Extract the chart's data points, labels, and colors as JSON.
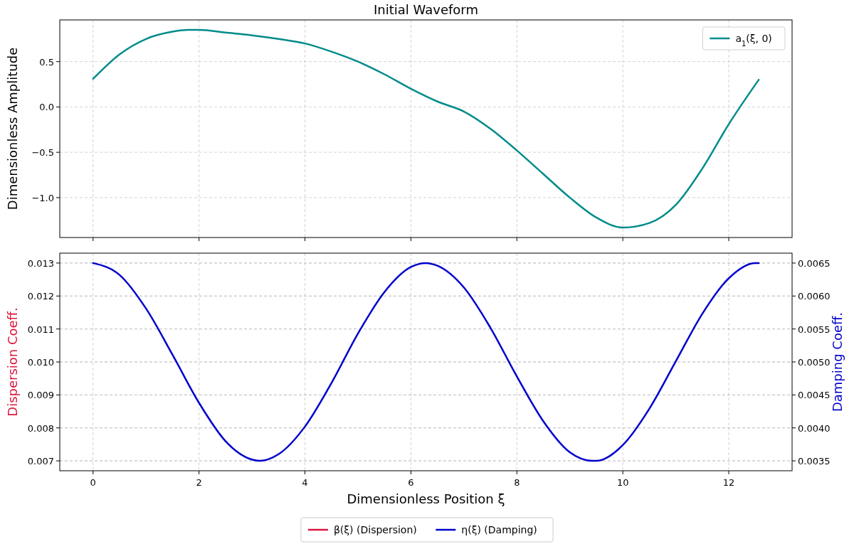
{
  "chart_data": [
    {
      "type": "line",
      "title": "Initial Waveform",
      "ylabel": "Dimensionless Amplitude",
      "x": [
        0,
        0.5,
        1,
        1.5,
        1.8,
        2,
        2.5,
        3,
        3.5,
        4,
        4.5,
        5,
        5.5,
        6,
        6.5,
        7,
        7.5,
        8,
        8.5,
        9,
        9.5,
        10,
        10.5,
        11,
        11.5,
        12,
        12.566
      ],
      "series": [
        {
          "name": "a$_{1}$(ξ, 0)",
          "color": "#008b8b",
          "values": [
            0.31,
            0.58,
            0.75,
            0.83,
            0.85,
            0.85,
            0.82,
            0.79,
            0.75,
            0.7,
            0.61,
            0.5,
            0.36,
            0.2,
            0.06,
            -0.05,
            -0.24,
            -0.48,
            -0.74,
            -1.0,
            -1.22,
            -1.33,
            -1.28,
            -1.08,
            -0.68,
            -0.19,
            0.3
          ]
        }
      ],
      "xlim": [
        -0.628,
        13.195
      ],
      "xticks": [
        0,
        2,
        4,
        6,
        8,
        10,
        12
      ],
      "ylim": [
        -1.44,
        0.96
      ],
      "yticks": [
        {
          "value": -1,
          "label": "−1.0"
        },
        {
          "value": -0.5,
          "label": "−0.5"
        },
        {
          "value": 0,
          "label": "0.0"
        },
        0.5
      ],
      "tick_labels": "y",
      "grid": true,
      "legend": "top right",
      "line_style": "solid"
    },
    {
      "type": "line",
      "xlabel": "Dimensionless Position ξ",
      "ylabel": "Dispersion Coeff.",
      "y2label": "Damping Coeff.",
      "x": [
        0,
        0.5,
        1,
        1.5,
        2,
        2.5,
        3,
        3.1416,
        3.5,
        4,
        4.5,
        5,
        5.5,
        6,
        6.283,
        6.5,
        7,
        7.5,
        8,
        8.5,
        9,
        9.425,
        9.5,
        10,
        10.5,
        11,
        11.5,
        12,
        12.5,
        12.566
      ],
      "series": [
        {
          "name": "β(ξ) (Dispersion)",
          "color": "#dc143c",
          "values": [
            null,
            null,
            null,
            null,
            null,
            null,
            null,
            null,
            null,
            null,
            null,
            null,
            null,
            null,
            null,
            null,
            null,
            null,
            null,
            null,
            null,
            null,
            null,
            null,
            null,
            null,
            null,
            null,
            null,
            null
          ]
        },
        {
          "name": "η(ξ) (Damping)",
          "color": "#0000cd",
          "axis": "y2",
          "values": [
            0.0065,
            0.00632,
            0.00581,
            0.00511,
            0.00438,
            0.0038,
            0.00352,
            0.0035,
            0.0036,
            0.00402,
            0.00468,
            0.00543,
            0.00606,
            0.00644,
            0.0065,
            0.00646,
            0.00613,
            0.00552,
            0.00478,
            0.0041,
            0.00363,
            0.0035,
            0.0035,
            0.00374,
            0.00429,
            0.00501,
            0.00573,
            0.00627,
            0.0065,
            0.0065
          ]
        }
      ],
      "xlim": [
        -0.628,
        13.195
      ],
      "xticks": [
        0,
        2,
        4,
        6,
        8,
        10,
        12
      ],
      "ylim": [
        0.0067,
        0.0133
      ],
      "yticks": [
        {
          "value": 0.007,
          "label": "0.007"
        },
        {
          "value": 0.008,
          "label": "0.008"
        },
        {
          "value": 0.009,
          "label": "0.009"
        },
        {
          "value": 0.01,
          "label": "0.010"
        },
        {
          "value": 0.011,
          "label": "0.011"
        },
        {
          "value": 0.012,
          "label": "0.012"
        },
        {
          "value": 0.013,
          "label": "0.013"
        }
      ],
      "y2lim": [
        0.00335,
        0.00665
      ],
      "y2ticks": [
        0.0035,
        {
          "value": 0.004,
          "label": "0.0040"
        },
        0.0045,
        {
          "value": 0.005,
          "label": "0.0050"
        },
        0.0055,
        {
          "value": 0.006,
          "label": "0.0060"
        },
        0.0065
      ],
      "grid": true,
      "legend": "bottom",
      "line_style": "solid"
    }
  ]
}
